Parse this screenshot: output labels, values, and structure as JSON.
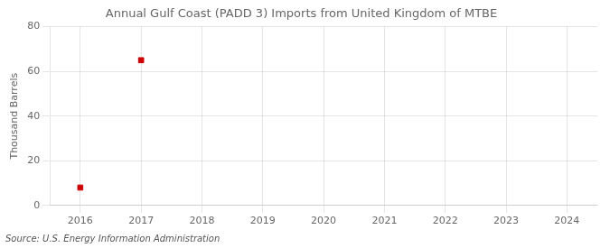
{
  "chart_data": {
    "type": "scatter",
    "title": "Annual Gulf Coast (PADD 3) Imports from United Kingdom of MTBE",
    "ylabel": "Thousand Barrels",
    "source": "Source: U.S. Energy Information Administration",
    "x": [
      2016,
      2017
    ],
    "values": [
      8,
      65
    ],
    "color": "#cc0000",
    "marker": "square",
    "xlim": [
      2015.5,
      2024.5
    ],
    "ylim": [
      0,
      80
    ],
    "xticks": [
      2016,
      2017,
      2018,
      2019,
      2020,
      2021,
      2022,
      2023,
      2024
    ],
    "yticks": [
      0,
      20,
      40,
      60,
      80
    ],
    "grid": true
  }
}
